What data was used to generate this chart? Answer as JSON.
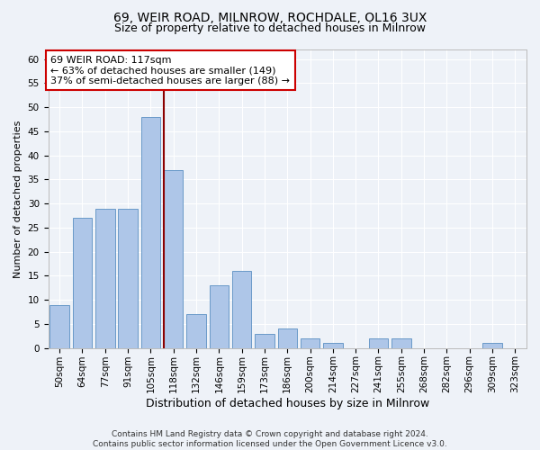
{
  "title1": "69, WEIR ROAD, MILNROW, ROCHDALE, OL16 3UX",
  "title2": "Size of property relative to detached houses in Milnrow",
  "xlabel": "Distribution of detached houses by size in Milnrow",
  "ylabel": "Number of detached properties",
  "bar_labels": [
    "50sqm",
    "64sqm",
    "77sqm",
    "91sqm",
    "105sqm",
    "118sqm",
    "132sqm",
    "146sqm",
    "159sqm",
    "173sqm",
    "186sqm",
    "200sqm",
    "214sqm",
    "227sqm",
    "241sqm",
    "255sqm",
    "268sqm",
    "282sqm",
    "296sqm",
    "309sqm",
    "323sqm"
  ],
  "bar_values": [
    9,
    27,
    29,
    29,
    48,
    37,
    7,
    13,
    16,
    3,
    4,
    2,
    1,
    0,
    2,
    2,
    0,
    0,
    0,
    1,
    0
  ],
  "bar_color": "#aec6e8",
  "bar_edge_color": "#5a8fc2",
  "red_line_index": 5,
  "red_line_color": "#8b0000",
  "ylim": [
    0,
    62
  ],
  "yticks": [
    0,
    5,
    10,
    15,
    20,
    25,
    30,
    35,
    40,
    45,
    50,
    55,
    60
  ],
  "annotation_text": "69 WEIR ROAD: 117sqm\n← 63% of detached houses are smaller (149)\n37% of semi-detached houses are larger (88) →",
  "annotation_box_color": "#ffffff",
  "annotation_box_edge_color": "#cc0000",
  "footer_text": "Contains HM Land Registry data © Crown copyright and database right 2024.\nContains public sector information licensed under the Open Government Licence v3.0.",
  "bg_color": "#eef2f8",
  "grid_color": "#ffffff",
  "title1_fontsize": 10,
  "title2_fontsize": 9,
  "xlabel_fontsize": 9,
  "ylabel_fontsize": 8,
  "tick_fontsize": 7.5,
  "annotation_fontsize": 8,
  "footer_fontsize": 6.5
}
